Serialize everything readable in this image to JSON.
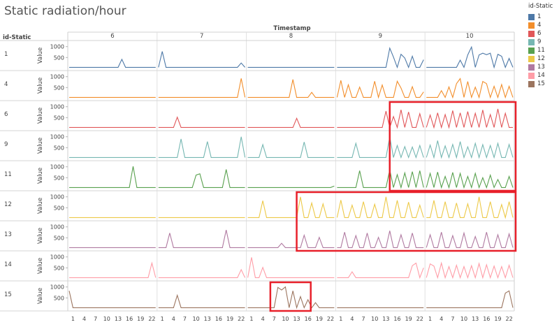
{
  "title": "Static radiation/hour",
  "row_header": "id-Static",
  "column_header": "Timestamp",
  "value_label": "Value",
  "legend": {
    "title": "id-Static",
    "items": [
      {
        "label": "1",
        "color": "#4e79a7"
      },
      {
        "label": "4",
        "color": "#f28e2b"
      },
      {
        "label": "6",
        "color": "#e15759"
      },
      {
        "label": "9",
        "color": "#76b7b2"
      },
      {
        "label": "11",
        "color": "#59a14f"
      },
      {
        "label": "12",
        "color": "#edc948"
      },
      {
        "label": "13",
        "color": "#b07aa1"
      },
      {
        "label": "14",
        "color": "#ff9da7"
      },
      {
        "label": "15",
        "color": "#9c755f"
      }
    ]
  },
  "chart_data": {
    "type": "line",
    "title": "Static radiation/hour",
    "xlabel": "Timestamp",
    "ylabel": "Value",
    "columns": [
      "6",
      "7",
      "8",
      "9",
      "10"
    ],
    "x_tick_labels": [
      "1",
      "4",
      "7",
      "10",
      "13",
      "16",
      "19",
      "22"
    ],
    "hour_range": [
      0,
      23
    ],
    "y_ticks": [
      500,
      1000
    ],
    "ylim": [
      0,
      1150
    ],
    "baseline": 50,
    "highlight_color": "#e8202a",
    "highlights": [
      {
        "columns": [
          "9",
          "10"
        ],
        "start_hour": 14,
        "end_hour": 23,
        "rows": [
          "6",
          "11"
        ]
      },
      {
        "columns": [
          "8",
          "10"
        ],
        "start_hour": 13,
        "end_hour": 23,
        "rows": [
          "12",
          "13"
        ]
      },
      {
        "columns": [
          "8"
        ],
        "start_hour": 6,
        "end_hour": 16,
        "rows": [
          "15",
          "15"
        ]
      }
    ],
    "series": [
      {
        "name": "1",
        "color": "#4e79a7",
        "peaks": [
          {
            "day": "6",
            "hour": 14,
            "value": 420
          },
          {
            "day": "7",
            "hour": 1,
            "value": 780
          },
          {
            "day": "7",
            "hour": 22,
            "value": 250
          },
          {
            "day": "9",
            "hour": 14,
            "value": 930
          },
          {
            "day": "9",
            "hour": 15,
            "value": 520
          },
          {
            "day": "9",
            "hour": 17,
            "value": 650
          },
          {
            "day": "9",
            "hour": 18,
            "value": 480
          },
          {
            "day": "9",
            "hour": 20,
            "value": 560
          },
          {
            "day": "9",
            "hour": 23,
            "value": 400
          },
          {
            "day": "10",
            "hour": 9,
            "value": 380
          },
          {
            "day": "10",
            "hour": 11,
            "value": 620
          },
          {
            "day": "10",
            "hour": 12,
            "value": 980
          },
          {
            "day": "10",
            "hour": 14,
            "value": 620
          },
          {
            "day": "10",
            "hour": 15,
            "value": 700
          },
          {
            "day": "10",
            "hour": 16,
            "value": 630
          },
          {
            "day": "10",
            "hour": 17,
            "value": 700
          },
          {
            "day": "10",
            "hour": 19,
            "value": 650
          },
          {
            "day": "10",
            "hour": 20,
            "value": 560
          },
          {
            "day": "10",
            "hour": 22,
            "value": 460
          }
        ]
      },
      {
        "name": "4",
        "color": "#f28e2b",
        "peaks": [
          {
            "day": "7",
            "hour": 22,
            "value": 920
          },
          {
            "day": "8",
            "hour": 12,
            "value": 870
          },
          {
            "day": "8",
            "hour": 17,
            "value": 280
          },
          {
            "day": "9",
            "hour": 1,
            "value": 830
          },
          {
            "day": "9",
            "hour": 3,
            "value": 630
          },
          {
            "day": "9",
            "hour": 6,
            "value": 520
          },
          {
            "day": "9",
            "hour": 10,
            "value": 790
          },
          {
            "day": "9",
            "hour": 12,
            "value": 620
          },
          {
            "day": "9",
            "hour": 16,
            "value": 790
          },
          {
            "day": "9",
            "hour": 17,
            "value": 480
          },
          {
            "day": "9",
            "hour": 20,
            "value": 540
          },
          {
            "day": "9",
            "hour": 23,
            "value": 300
          },
          {
            "day": "10",
            "hour": 4,
            "value": 360
          },
          {
            "day": "10",
            "hour": 6,
            "value": 530
          },
          {
            "day": "10",
            "hour": 8,
            "value": 680
          },
          {
            "day": "10",
            "hour": 9,
            "value": 910
          },
          {
            "day": "10",
            "hour": 11,
            "value": 780
          },
          {
            "day": "10",
            "hour": 13,
            "value": 520
          },
          {
            "day": "10",
            "hour": 15,
            "value": 780
          },
          {
            "day": "10",
            "hour": 16,
            "value": 680
          },
          {
            "day": "10",
            "hour": 18,
            "value": 560
          },
          {
            "day": "10",
            "hour": 20,
            "value": 640
          },
          {
            "day": "10",
            "hour": 22,
            "value": 560
          }
        ]
      },
      {
        "name": "6",
        "color": "#e15759",
        "peaks": [
          {
            "day": "7",
            "hour": 5,
            "value": 520
          },
          {
            "day": "8",
            "hour": 13,
            "value": 470
          },
          {
            "day": "9",
            "hour": 13,
            "value": 800
          },
          {
            "day": "9",
            "hour": 15,
            "value": 550
          },
          {
            "day": "9",
            "hour": 17,
            "value": 860
          },
          {
            "day": "9",
            "hour": 19,
            "value": 760
          },
          {
            "day": "9",
            "hour": 22,
            "value": 680
          },
          {
            "day": "10",
            "hour": 1,
            "value": 620
          },
          {
            "day": "10",
            "hour": 3,
            "value": 720
          },
          {
            "day": "10",
            "hour": 5,
            "value": 640
          },
          {
            "day": "10",
            "hour": 7,
            "value": 820
          },
          {
            "day": "10",
            "hour": 9,
            "value": 720
          },
          {
            "day": "10",
            "hour": 11,
            "value": 780
          },
          {
            "day": "10",
            "hour": 13,
            "value": 700
          },
          {
            "day": "10",
            "hour": 15,
            "value": 850
          },
          {
            "day": "10",
            "hour": 17,
            "value": 640
          },
          {
            "day": "10",
            "hour": 19,
            "value": 900
          },
          {
            "day": "10",
            "hour": 21,
            "value": 700
          }
        ]
      },
      {
        "name": "9",
        "color": "#76b7b2",
        "peaks": [
          {
            "day": "7",
            "hour": 6,
            "value": 900
          },
          {
            "day": "7",
            "hour": 13,
            "value": 780
          },
          {
            "day": "7",
            "hour": 22,
            "value": 1000
          },
          {
            "day": "8",
            "hour": 4,
            "value": 640
          },
          {
            "day": "8",
            "hour": 15,
            "value": 760
          },
          {
            "day": "9",
            "hour": 5,
            "value": 700
          },
          {
            "day": "9",
            "hour": 14,
            "value": 1000
          },
          {
            "day": "9",
            "hour": 16,
            "value": 600
          },
          {
            "day": "9",
            "hour": 18,
            "value": 550
          },
          {
            "day": "9",
            "hour": 20,
            "value": 530
          },
          {
            "day": "9",
            "hour": 22,
            "value": 600
          },
          {
            "day": "10",
            "hour": 1,
            "value": 620
          },
          {
            "day": "10",
            "hour": 3,
            "value": 820
          },
          {
            "day": "10",
            "hour": 5,
            "value": 580
          },
          {
            "day": "10",
            "hour": 7,
            "value": 650
          },
          {
            "day": "10",
            "hour": 9,
            "value": 780
          },
          {
            "day": "10",
            "hour": 11,
            "value": 540
          },
          {
            "day": "10",
            "hour": 13,
            "value": 700
          },
          {
            "day": "10",
            "hour": 15,
            "value": 640
          },
          {
            "day": "10",
            "hour": 17,
            "value": 600
          },
          {
            "day": "10",
            "hour": 19,
            "value": 700
          },
          {
            "day": "10",
            "hour": 22,
            "value": 650
          }
        ]
      },
      {
        "name": "11",
        "color": "#59a14f",
        "peaks": [
          {
            "day": "6",
            "hour": 17,
            "value": 1020
          },
          {
            "day": "7",
            "hour": 10,
            "value": 620
          },
          {
            "day": "7",
            "hour": 11,
            "value": 680
          },
          {
            "day": "7",
            "hour": 18,
            "value": 880
          },
          {
            "day": "8",
            "hour": 23,
            "value": 120
          },
          {
            "day": "9",
            "hour": 6,
            "value": 820
          },
          {
            "day": "9",
            "hour": 14,
            "value": 860
          },
          {
            "day": "9",
            "hour": 16,
            "value": 640
          },
          {
            "day": "9",
            "hour": 18,
            "value": 720
          },
          {
            "day": "9",
            "hour": 20,
            "value": 780
          },
          {
            "day": "9",
            "hour": 22,
            "value": 820
          },
          {
            "day": "10",
            "hour": 1,
            "value": 700
          },
          {
            "day": "10",
            "hour": 3,
            "value": 760
          },
          {
            "day": "10",
            "hour": 5,
            "value": 560
          },
          {
            "day": "10",
            "hour": 7,
            "value": 740
          },
          {
            "day": "10",
            "hour": 9,
            "value": 700
          },
          {
            "day": "10",
            "hour": 11,
            "value": 560
          },
          {
            "day": "10",
            "hour": 13,
            "value": 700
          },
          {
            "day": "10",
            "hour": 15,
            "value": 500
          },
          {
            "day": "10",
            "hour": 17,
            "value": 620
          },
          {
            "day": "10",
            "hour": 19,
            "value": 420
          },
          {
            "day": "10",
            "hour": 22,
            "value": 560
          }
        ]
      },
      {
        "name": "12",
        "color": "#edc948",
        "peaks": [
          {
            "day": "8",
            "hour": 4,
            "value": 820
          },
          {
            "day": "8",
            "hour": 14,
            "value": 1000
          },
          {
            "day": "8",
            "hour": 17,
            "value": 720
          },
          {
            "day": "8",
            "hour": 20,
            "value": 680
          },
          {
            "day": "9",
            "hour": 1,
            "value": 850
          },
          {
            "day": "9",
            "hour": 4,
            "value": 620
          },
          {
            "day": "9",
            "hour": 7,
            "value": 780
          },
          {
            "day": "9",
            "hour": 10,
            "value": 660
          },
          {
            "day": "9",
            "hour": 13,
            "value": 1000
          },
          {
            "day": "9",
            "hour": 16,
            "value": 840
          },
          {
            "day": "9",
            "hour": 19,
            "value": 760
          },
          {
            "day": "9",
            "hour": 22,
            "value": 620
          },
          {
            "day": "10",
            "hour": 2,
            "value": 840
          },
          {
            "day": "10",
            "hour": 5,
            "value": 780
          },
          {
            "day": "10",
            "hour": 8,
            "value": 720
          },
          {
            "day": "10",
            "hour": 11,
            "value": 680
          },
          {
            "day": "10",
            "hour": 14,
            "value": 1000
          },
          {
            "day": "10",
            "hour": 17,
            "value": 780
          },
          {
            "day": "10",
            "hour": 20,
            "value": 650
          },
          {
            "day": "10",
            "hour": 22,
            "value": 780
          }
        ]
      },
      {
        "name": "13",
        "color": "#b07aa1",
        "peaks": [
          {
            "day": "7",
            "hour": 3,
            "value": 720
          },
          {
            "day": "7",
            "hour": 18,
            "value": 860
          },
          {
            "day": "8",
            "hour": 9,
            "value": 250
          },
          {
            "day": "8",
            "hour": 15,
            "value": 620
          },
          {
            "day": "8",
            "hour": 19,
            "value": 520
          },
          {
            "day": "9",
            "hour": 2,
            "value": 760
          },
          {
            "day": "9",
            "hour": 5,
            "value": 600
          },
          {
            "day": "9",
            "hour": 8,
            "value": 720
          },
          {
            "day": "9",
            "hour": 11,
            "value": 520
          },
          {
            "day": "9",
            "hour": 14,
            "value": 820
          },
          {
            "day": "9",
            "hour": 17,
            "value": 640
          },
          {
            "day": "9",
            "hour": 20,
            "value": 720
          },
          {
            "day": "10",
            "hour": 1,
            "value": 640
          },
          {
            "day": "10",
            "hour": 4,
            "value": 760
          },
          {
            "day": "10",
            "hour": 7,
            "value": 600
          },
          {
            "day": "10",
            "hour": 10,
            "value": 720
          },
          {
            "day": "10",
            "hour": 13,
            "value": 560
          },
          {
            "day": "10",
            "hour": 16,
            "value": 760
          },
          {
            "day": "10",
            "hour": 19,
            "value": 640
          },
          {
            "day": "10",
            "hour": 22,
            "value": 680
          }
        ]
      },
      {
        "name": "14",
        "color": "#ff9da7",
        "peaks": [
          {
            "day": "6",
            "hour": 22,
            "value": 720
          },
          {
            "day": "7",
            "hour": 22,
            "value": 420
          },
          {
            "day": "8",
            "hour": 1,
            "value": 980
          },
          {
            "day": "8",
            "hour": 4,
            "value": 520
          },
          {
            "day": "9",
            "hour": 4,
            "value": 320
          },
          {
            "day": "9",
            "hour": 20,
            "value": 600
          },
          {
            "day": "9",
            "hour": 21,
            "value": 720
          },
          {
            "day": "9",
            "hour": 23,
            "value": 500
          },
          {
            "day": "10",
            "hour": 1,
            "value": 680
          },
          {
            "day": "10",
            "hour": 2,
            "value": 580
          },
          {
            "day": "10",
            "hour": 4,
            "value": 720
          },
          {
            "day": "10",
            "hour": 6,
            "value": 560
          },
          {
            "day": "10",
            "hour": 8,
            "value": 620
          },
          {
            "day": "10",
            "hour": 10,
            "value": 560
          },
          {
            "day": "10",
            "hour": 12,
            "value": 600
          },
          {
            "day": "10",
            "hour": 14,
            "value": 700
          },
          {
            "day": "10",
            "hour": 16,
            "value": 640
          },
          {
            "day": "10",
            "hour": 18,
            "value": 580
          },
          {
            "day": "10",
            "hour": 20,
            "value": 560
          },
          {
            "day": "10",
            "hour": 22,
            "value": 620
          }
        ]
      },
      {
        "name": "15",
        "color": "#9c755f",
        "peaks": [
          {
            "day": "6",
            "hour": 0,
            "value": 820
          },
          {
            "day": "7",
            "hour": 5,
            "value": 620
          },
          {
            "day": "8",
            "hour": 8,
            "value": 980
          },
          {
            "day": "8",
            "hour": 9,
            "value": 860
          },
          {
            "day": "8",
            "hour": 10,
            "value": 1000
          },
          {
            "day": "8",
            "hour": 12,
            "value": 820
          },
          {
            "day": "8",
            "hour": 14,
            "value": 560
          },
          {
            "day": "8",
            "hour": 16,
            "value": 420
          },
          {
            "day": "8",
            "hour": 18,
            "value": 280
          },
          {
            "day": "10",
            "hour": 21,
            "value": 720
          },
          {
            "day": "10",
            "hour": 22,
            "value": 820
          }
        ]
      }
    ]
  }
}
